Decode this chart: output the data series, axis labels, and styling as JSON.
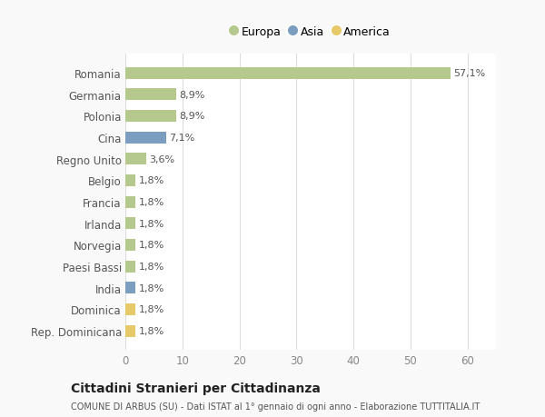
{
  "categories": [
    "Rep. Dominicana",
    "Dominica",
    "India",
    "Paesi Bassi",
    "Norvegia",
    "Irlanda",
    "Francia",
    "Belgio",
    "Regno Unito",
    "Cina",
    "Polonia",
    "Germania",
    "Romania"
  ],
  "values": [
    1.8,
    1.8,
    1.8,
    1.8,
    1.8,
    1.8,
    1.8,
    1.8,
    3.6,
    7.1,
    8.9,
    8.9,
    57.1
  ],
  "continents": [
    "America",
    "America",
    "Asia",
    "Europa",
    "Europa",
    "Europa",
    "Europa",
    "Europa",
    "Europa",
    "Asia",
    "Europa",
    "Europa",
    "Europa"
  ],
  "labels": [
    "1,8%",
    "1,8%",
    "1,8%",
    "1,8%",
    "1,8%",
    "1,8%",
    "1,8%",
    "1,8%",
    "3,6%",
    "7,1%",
    "8,9%",
    "8,9%",
    "57,1%"
  ],
  "color_map": {
    "Europa": "#b5c98e",
    "Asia": "#7b9dc0",
    "America": "#e8c96a"
  },
  "legend_items": [
    {
      "label": "Europa",
      "color": "#b5c98e"
    },
    {
      "label": "Asia",
      "color": "#7b9dc0"
    },
    {
      "label": "America",
      "color": "#e8c96a"
    }
  ],
  "xlim": [
    0,
    65
  ],
  "xticks": [
    0,
    10,
    20,
    30,
    40,
    50,
    60
  ],
  "background_color": "#f9f9f9",
  "plot_background": "#ffffff",
  "title_line1": "Cittadini Stranieri per Cittadinanza",
  "title_line2": "COMUNE DI ARBUS (SU) - Dati ISTAT al 1° gennaio di ogni anno - Elaborazione TUTTITALIA.IT",
  "label_fontsize": 8,
  "ytick_fontsize": 8.5,
  "xtick_fontsize": 8.5,
  "bar_height": 0.55
}
